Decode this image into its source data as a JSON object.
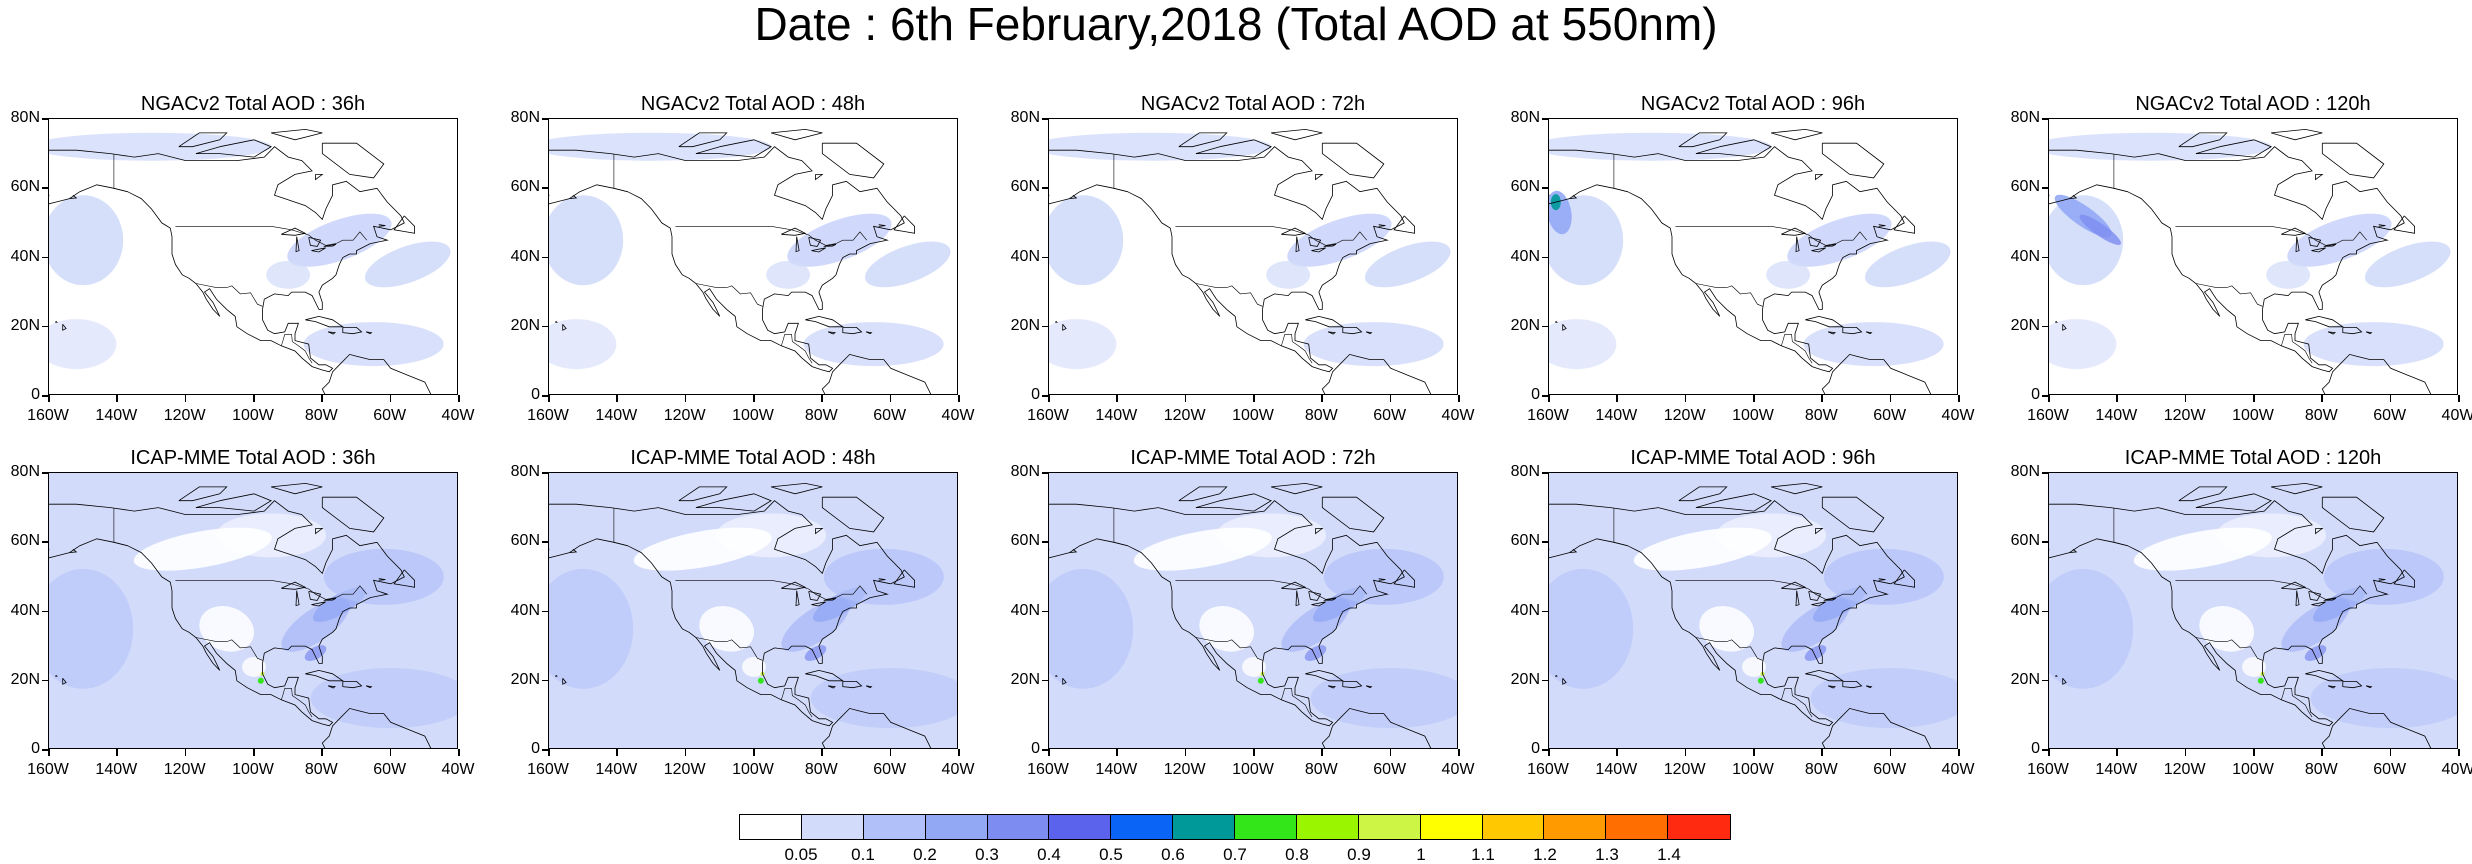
{
  "title": "Date : 6th February,2018 (Total AOD at 550nm)",
  "axes": {
    "y_ticks": [
      "80N",
      "60N",
      "40N",
      "20N",
      "0"
    ],
    "x_ticks": [
      "160W",
      "140W",
      "120W",
      "100W",
      "80W",
      "60W",
      "40W"
    ]
  },
  "panels": [
    {
      "title": "NGACv2 Total AOD : 36h",
      "model": "NGACv2",
      "lead": "36h",
      "row": 0,
      "col": 0
    },
    {
      "title": "NGACv2 Total AOD : 48h",
      "model": "NGACv2",
      "lead": "48h",
      "row": 0,
      "col": 1
    },
    {
      "title": "NGACv2 Total AOD : 72h",
      "model": "NGACv2",
      "lead": "72h",
      "row": 0,
      "col": 2
    },
    {
      "title": "NGACv2 Total AOD : 96h",
      "model": "NGACv2",
      "lead": "96h",
      "row": 0,
      "col": 3
    },
    {
      "title": "NGACv2 Total AOD : 120h",
      "model": "NGACv2",
      "lead": "120h",
      "row": 0,
      "col": 4
    },
    {
      "title": "ICAP-MME Total AOD : 36h",
      "model": "ICAP-MME",
      "lead": "36h",
      "row": 1,
      "col": 0
    },
    {
      "title": "ICAP-MME Total AOD : 48h",
      "model": "ICAP-MME",
      "lead": "48h",
      "row": 1,
      "col": 1
    },
    {
      "title": "ICAP-MME Total AOD : 72h",
      "model": "ICAP-MME",
      "lead": "72h",
      "row": 1,
      "col": 2
    },
    {
      "title": "ICAP-MME Total AOD : 96h",
      "model": "ICAP-MME",
      "lead": "96h",
      "row": 1,
      "col": 3
    },
    {
      "title": "ICAP-MME Total AOD : 120h",
      "model": "ICAP-MME",
      "lead": "120h",
      "row": 1,
      "col": 4
    }
  ],
  "colorbar": {
    "labels": [
      "0.05",
      "0.1",
      "0.2",
      "0.3",
      "0.4",
      "0.5",
      "0.6",
      "0.7",
      "0.8",
      "0.9",
      "1",
      "1.1",
      "1.2",
      "1.3",
      "1.4"
    ],
    "colors": [
      "#ffffff",
      "#d2dbfa",
      "#b1c0f8",
      "#92a8f5",
      "#7c8cf0",
      "#5b62ec",
      "#0a64f5",
      "#009999",
      "#33e619",
      "#99f500",
      "#ccf545",
      "#ffff00",
      "#ffc800",
      "#ff9b00",
      "#ff6e00",
      "#ff2a10"
    ]
  }
}
